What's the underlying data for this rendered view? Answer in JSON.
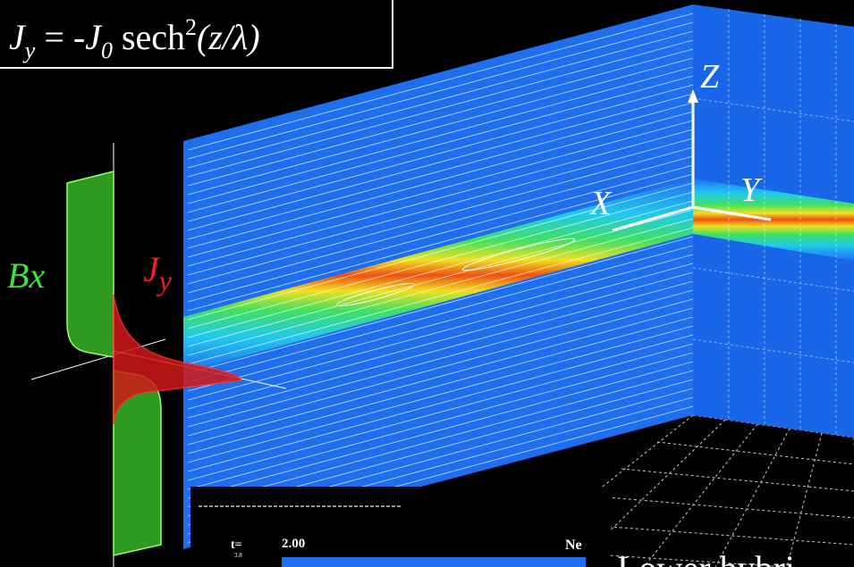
{
  "equation": {
    "j": "J",
    "y": "y",
    "equals": " = -",
    "j0": "J",
    "zero": "0",
    "sech": " sech",
    "squared": "2",
    "arg": "(z/λ)"
  },
  "axes": {
    "z": "Z",
    "x": "X",
    "y": "Y"
  },
  "profile": {
    "b": "B",
    "bsub": "x",
    "j": "J",
    "jsub": "y"
  },
  "inset": {
    "t": "t=",
    "step": "3.8",
    "time": "2.00",
    "quantity": "Ne"
  },
  "caption": "Lower hybri"
}
